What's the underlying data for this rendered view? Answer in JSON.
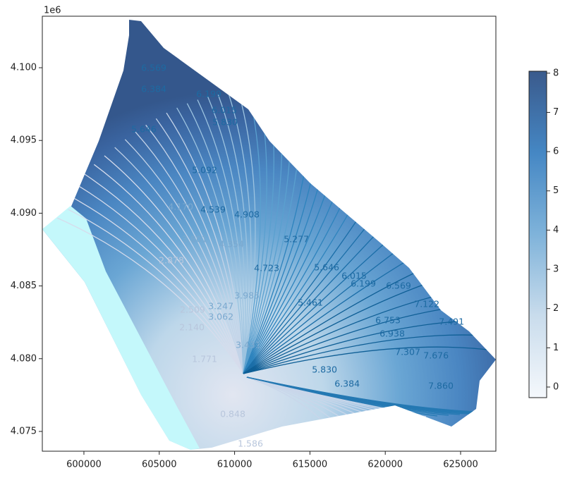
{
  "chart_data": {
    "type": "contour",
    "offset_label": "1e6",
    "xlim": [
      597240,
      627340
    ],
    "ylim": [
      4073640,
      4103540
    ],
    "xticks": [
      600000,
      605000,
      610000,
      615000,
      620000,
      625000
    ],
    "yticks": [
      {
        "value": 4075000,
        "label": "4.075"
      },
      {
        "value": 4080000,
        "label": "4.080"
      },
      {
        "value": 4085000,
        "label": "4.085"
      },
      {
        "value": 4090000,
        "label": "4.090"
      },
      {
        "value": 4095000,
        "label": "4.095"
      },
      {
        "value": 4100000,
        "label": "4.100"
      }
    ],
    "colorbar": {
      "lim": [
        -0.27,
        8.05
      ],
      "ticks": [
        0,
        1,
        2,
        3,
        4,
        5,
        6,
        7,
        8
      ]
    },
    "contour_labels": [
      {
        "x": 604640,
        "y": 4099950,
        "value": 6.569,
        "label": "6.569"
      },
      {
        "x": 604640,
        "y": 4098500,
        "value": 6.384,
        "label": "6.384"
      },
      {
        "x": 608290,
        "y": 4098160,
        "value": 6.199,
        "label": "6.199"
      },
      {
        "x": 609320,
        "y": 4097050,
        "value": 6.015,
        "label": "6.015"
      },
      {
        "x": 609370,
        "y": 4096220,
        "value": 5.83,
        "label": "5.830"
      },
      {
        "x": 603980,
        "y": 4095740,
        "value": 5.646,
        "label": "5.646"
      },
      {
        "x": 608010,
        "y": 4092930,
        "value": 5.092,
        "label": "5.092"
      },
      {
        "x": 606420,
        "y": 4090410,
        "value": 4.17,
        "label": "4.170"
      },
      {
        "x": 608570,
        "y": 4090210,
        "value": 4.539,
        "label": "4.539"
      },
      {
        "x": 610820,
        "y": 4089870,
        "value": 4.908,
        "label": "4.908"
      },
      {
        "x": 614100,
        "y": 4088180,
        "value": 5.277,
        "label": "5.277"
      },
      {
        "x": 607350,
        "y": 4088180,
        "value": 3.801,
        "label": "3.801"
      },
      {
        "x": 609790,
        "y": 4087840,
        "value": 4.354,
        "label": "4.354"
      },
      {
        "x": 612130,
        "y": 4086190,
        "value": 4.723,
        "label": "4.723"
      },
      {
        "x": 605810,
        "y": 4086730,
        "value": 2.878,
        "label": "2.878"
      },
      {
        "x": 610820,
        "y": 4084300,
        "value": 3.985,
        "label": "3.985"
      },
      {
        "x": 615030,
        "y": 4083820,
        "value": 5.461,
        "label": "5.461"
      },
      {
        "x": 616110,
        "y": 4086240,
        "value": 5.646,
        "label": "5.646"
      },
      {
        "x": 617930,
        "y": 4085660,
        "value": 6.015,
        "label": "6.015"
      },
      {
        "x": 618540,
        "y": 4085130,
        "value": 6.199,
        "label": "6.199"
      },
      {
        "x": 620880,
        "y": 4084980,
        "value": 6.569,
        "label": "6.569"
      },
      {
        "x": 620180,
        "y": 4082610,
        "value": 6.753,
        "label": "6.753"
      },
      {
        "x": 620460,
        "y": 4081690,
        "value": 6.938,
        "label": "6.938"
      },
      {
        "x": 622760,
        "y": 4083720,
        "value": 7.122,
        "label": "7.122"
      },
      {
        "x": 624400,
        "y": 4082510,
        "value": 7.491,
        "label": "7.491"
      },
      {
        "x": 621490,
        "y": 4080430,
        "value": 7.307,
        "label": "7.307"
      },
      {
        "x": 623370,
        "y": 4080180,
        "value": 7.676,
        "label": "7.676"
      },
      {
        "x": 623690,
        "y": 4078100,
        "value": 7.86,
        "label": "7.860"
      },
      {
        "x": 607210,
        "y": 4083330,
        "value": 2.509,
        "label": "2.509"
      },
      {
        "x": 607170,
        "y": 4082120,
        "value": 2.14,
        "label": "2.140"
      },
      {
        "x": 609090,
        "y": 4082850,
        "value": 3.062,
        "label": "3.062"
      },
      {
        "x": 609090,
        "y": 4083570,
        "value": 3.247,
        "label": "3.247"
      },
      {
        "x": 610910,
        "y": 4080910,
        "value": 3.431,
        "label": "3.431"
      },
      {
        "x": 608010,
        "y": 4079940,
        "value": 1.771,
        "label": "1.771"
      },
      {
        "x": 615970,
        "y": 4079220,
        "value": 5.83,
        "label": "5.830"
      },
      {
        "x": 617470,
        "y": 4078250,
        "value": 6.384,
        "label": "6.384"
      },
      {
        "x": 609880,
        "y": 4076160,
        "value": 0.848,
        "label": "0.848"
      },
      {
        "x": 611050,
        "y": 4074130,
        "value": 1.586,
        "label": "1.586"
      }
    ]
  }
}
